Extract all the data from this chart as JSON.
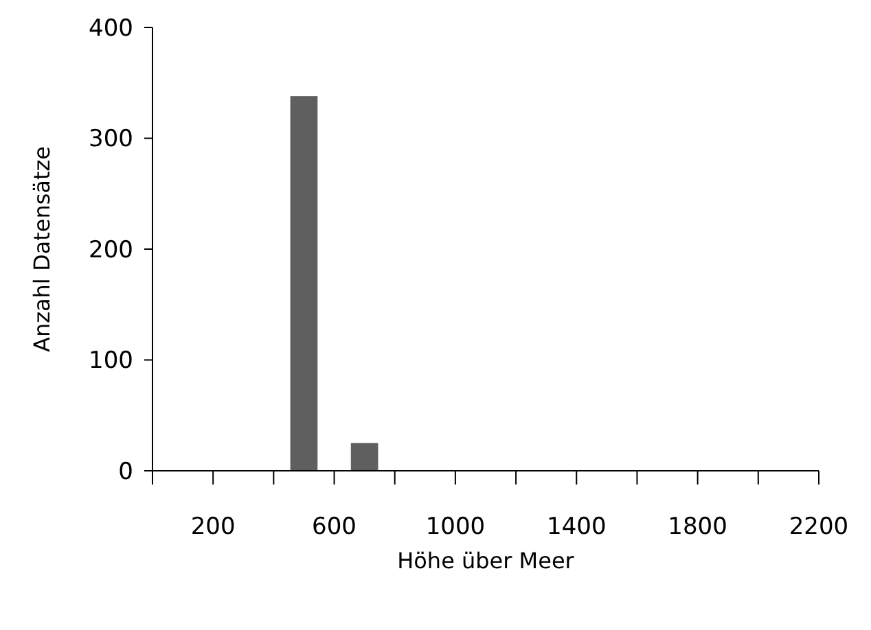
{
  "chart_data": {
    "type": "histogram",
    "xlabel": "Höhe über Meer",
    "ylabel": "Anzahl Datensätze",
    "bins": [
      0,
      200,
      400,
      600,
      800,
      1000,
      1200,
      1400,
      1600,
      1800,
      2000,
      2200
    ],
    "values": [
      0,
      0,
      338,
      25,
      0,
      0,
      0,
      0,
      0,
      0,
      0
    ],
    "color": "#5f5f5f",
    "xlim": [
      0,
      2200
    ],
    "xticks": [
      {
        "value": 0,
        "label": null
      },
      200,
      {
        "value": 400,
        "label": null
      },
      600,
      {
        "value": 800,
        "label": null
      },
      1000,
      {
        "value": 1200,
        "label": null
      },
      1400,
      {
        "value": 1600,
        "label": null
      },
      1800,
      {
        "value": 2000,
        "label": null
      },
      2200
    ],
    "ylim": [
      0,
      400
    ],
    "yticks": [
      0,
      100,
      200,
      300,
      400
    ],
    "grid": false
  }
}
